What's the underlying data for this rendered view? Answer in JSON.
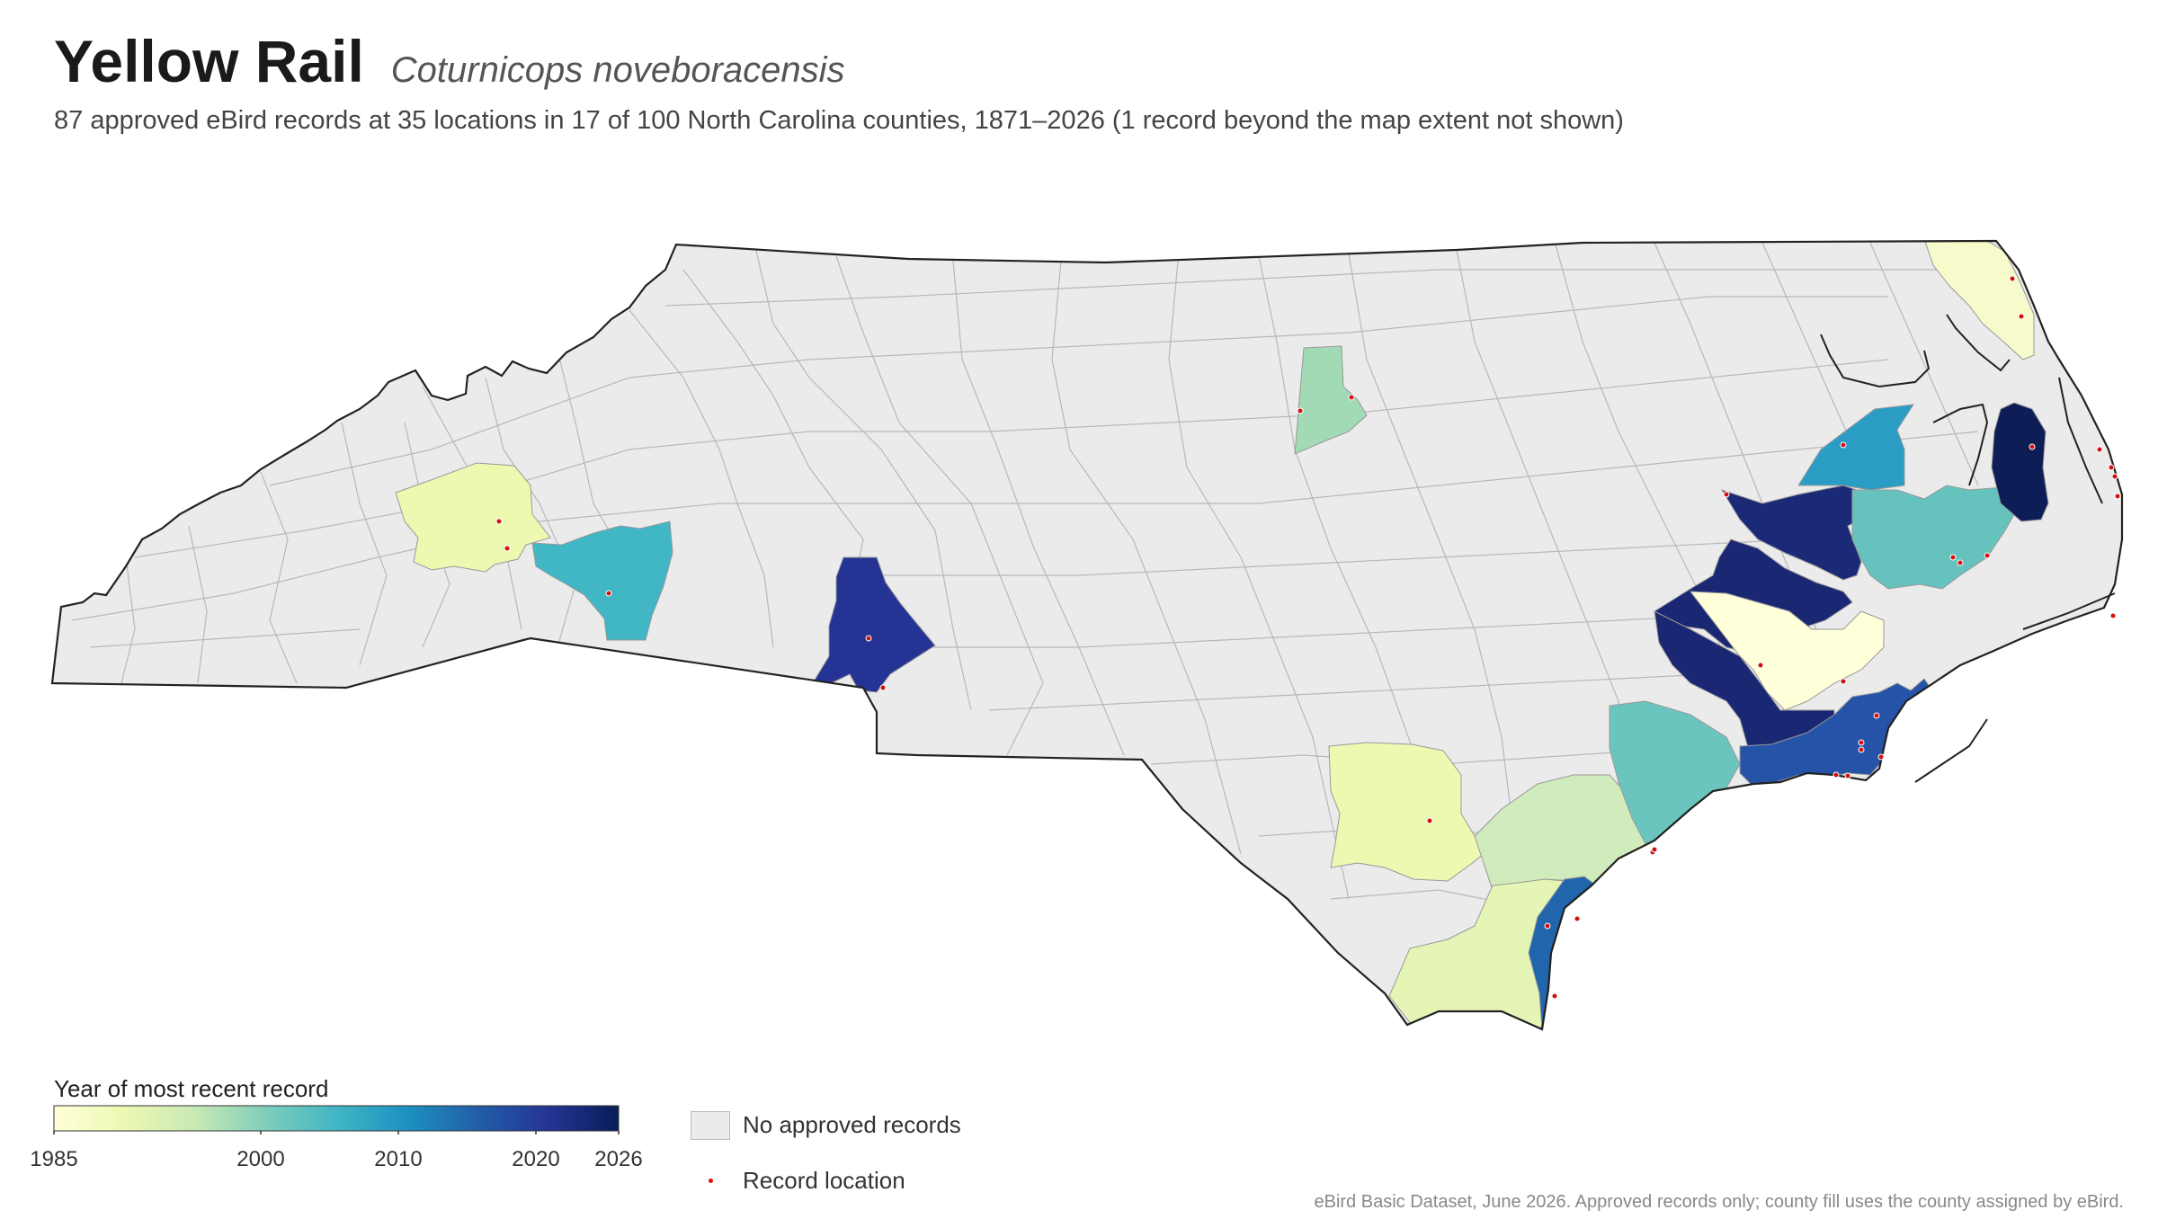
{
  "header": {
    "title": "Yellow Rail",
    "scientific_name": "Coturnicops noveboracensis",
    "subtitle": "87 approved eBird records at 35 locations in 17 of 100 North Carolina counties, 1871–2026 (1 record beyond the map extent not shown)"
  },
  "legend": {
    "colorbar_title": "Year of most recent record",
    "ticks": [
      "1985",
      "2000",
      "2010",
      "2020",
      "2026"
    ],
    "range": [
      1985,
      2026
    ],
    "colors": [
      "#ffffd9",
      "#edf8b1",
      "#c7e9b4",
      "#7fcdbb",
      "#41b6c4",
      "#1d91c0",
      "#225ea8",
      "#253494",
      "#081d58"
    ],
    "no_records_label": "No approved records",
    "no_records_color": "#ebebeb",
    "record_location_label": "Record location",
    "record_color": "#d11111"
  },
  "source_note": "eBird Basic Dataset, June 2026. Approved records only; county fill uses the county assigned by eBird."
}
